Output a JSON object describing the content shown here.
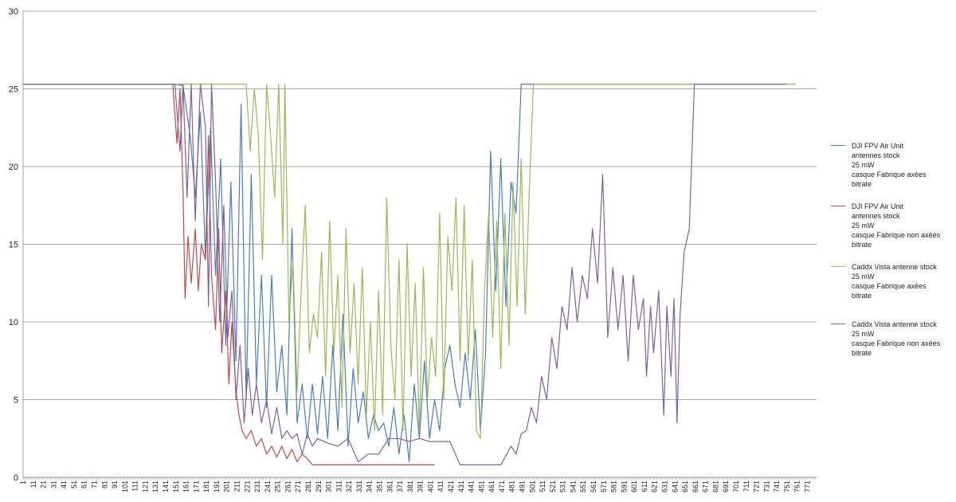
{
  "chart_data": {
    "type": "line",
    "ylim": [
      0,
      30
    ],
    "yticks": [
      0,
      5,
      10,
      15,
      20,
      25,
      30
    ],
    "xlim": [
      1,
      780
    ],
    "xtick_start": 1,
    "xtick_step": 10,
    "xtick_count": 78,
    "grid": "horizontal",
    "legend_position": "right",
    "series": [
      {
        "name": "DJI FPV Air Unit\nantennes stock\n25 mW\n casque Fabrique axées\nbitrate",
        "color": "#4a7ebb",
        "x": [
          1,
          150,
          158,
          165,
          170,
          175,
          180,
          185,
          190,
          195,
          200,
          205,
          210,
          215,
          220,
          225,
          230,
          235,
          240,
          245,
          250,
          255,
          260,
          265,
          270,
          275,
          280,
          285,
          290,
          295,
          300,
          305,
          310,
          315,
          320,
          325,
          330,
          335,
          340,
          345,
          350,
          355,
          360,
          365,
          370,
          375,
          380,
          385,
          390,
          395,
          400,
          405,
          410,
          415,
          420,
          425,
          430,
          435,
          440,
          445,
          450,
          455,
          460,
          465,
          470,
          475,
          480,
          485,
          490,
          495,
          500,
          520,
          540,
          560,
          580,
          600,
          620,
          640,
          660,
          680,
          700,
          720,
          740,
          750
        ],
        "values": [
          25.3,
          25.3,
          25.2,
          22.0,
          18.0,
          23.5,
          14.0,
          22.5,
          13.0,
          20.5,
          8.5,
          19.0,
          7.5,
          24.0,
          5.0,
          19.5,
          6.0,
          13.0,
          4.5,
          13.0,
          5.5,
          8.5,
          4.0,
          16.0,
          3.5,
          6.0,
          2.5,
          6.0,
          2.8,
          6.5,
          2.5,
          8.5,
          3.0,
          10.5,
          2.0,
          7.0,
          3.5,
          5.5,
          2.5,
          4.0,
          3.0,
          3.5,
          2.0,
          4.5,
          1.5,
          4.0,
          1.0,
          6.0,
          2.5,
          7.5,
          2.5,
          5.0,
          3.0,
          7.0,
          8.5,
          6.0,
          4.5,
          8.0,
          5.0,
          9.5,
          3.0,
          8.0,
          21.0,
          12.0,
          20.5,
          11.0,
          19.0,
          17.0,
          25.3,
          25.3,
          25.3,
          25.3,
          25.3,
          25.3,
          25.3,
          25.3,
          25.3,
          25.3,
          25.3,
          25.3,
          25.3,
          25.3,
          25.3,
          25.3
        ]
      },
      {
        "name": "DJI FPV Air Unit\nantennes stock\n25 mW\n casque Fabrique non axées\nbitrate",
        "color": "#be4b48",
        "x": [
          1,
          148,
          152,
          155,
          158,
          160,
          163,
          166,
          170,
          173,
          176,
          180,
          183,
          186,
          190,
          193,
          196,
          200,
          203,
          206,
          210,
          213,
          216,
          220,
          225,
          230,
          235,
          240,
          245,
          250,
          255,
          260,
          265,
          270,
          275,
          280,
          285,
          290,
          295,
          300,
          310,
          320,
          330,
          340,
          350,
          360,
          370,
          380,
          390,
          400,
          405
        ],
        "values": [
          25.3,
          25.3,
          21.5,
          25.0,
          18.5,
          11.5,
          15.5,
          12.5,
          16.0,
          12.0,
          15.0,
          14.0,
          22.0,
          13.0,
          9.5,
          16.0,
          8.0,
          12.0,
          6.0,
          10.0,
          5.5,
          4.0,
          3.0,
          2.5,
          3.0,
          2.0,
          2.5,
          1.5,
          2.0,
          1.3,
          2.0,
          1.2,
          1.8,
          1.0,
          1.5,
          1.2,
          0.8,
          0.8,
          0.8,
          0.8,
          0.8,
          0.8,
          0.8,
          0.8,
          0.8,
          0.8,
          0.8,
          0.8,
          0.8,
          0.8,
          0.8
        ]
      },
      {
        "name": "Caddx Vista antenne stock\n25 mW\n casque Fabrique axées\nbitrate",
        "color": "#98b954",
        "x": [
          1,
          210,
          214,
          217,
          220,
          224,
          228,
          232,
          236,
          240,
          244,
          248,
          252,
          256,
          258,
          262,
          266,
          270,
          274,
          278,
          282,
          286,
          290,
          294,
          298,
          302,
          306,
          310,
          314,
          318,
          322,
          326,
          330,
          334,
          338,
          342,
          346,
          350,
          354,
          358,
          362,
          366,
          370,
          374,
          378,
          382,
          386,
          390,
          394,
          398,
          402,
          406,
          410,
          414,
          418,
          422,
          426,
          430,
          434,
          438,
          442,
          446,
          450,
          454,
          458,
          462,
          466,
          470,
          474,
          478,
          482,
          486,
          490,
          494,
          498,
          502,
          506,
          512,
          530,
          560,
          600,
          640,
          680,
          720,
          760
        ],
        "values": [
          25.3,
          25.3,
          25.3,
          25.3,
          25.3,
          21.0,
          25.0,
          22.0,
          14.0,
          25.3,
          22.0,
          18.0,
          25.3,
          15.0,
          25.3,
          10.0,
          14.0,
          5.5,
          12.0,
          17.5,
          8.0,
          10.5,
          9.0,
          14.5,
          6.5,
          16.5,
          8.0,
          13.0,
          4.5,
          16.0,
          8.0,
          12.5,
          6.0,
          13.5,
          4.0,
          10.0,
          3.0,
          12.0,
          4.0,
          18.0,
          8.5,
          5.0,
          14.0,
          3.0,
          15.0,
          6.5,
          12.5,
          3.0,
          13.5,
          5.0,
          9.0,
          6.5,
          17.0,
          5.0,
          15.5,
          12.0,
          18.0,
          7.5,
          17.5,
          7.5,
          14.0,
          3.0,
          2.5,
          12.0,
          17.0,
          9.0,
          16.5,
          7.0,
          17.0,
          8.5,
          19.0,
          11.0,
          20.5,
          10.5,
          18.5,
          25.3,
          25.3,
          25.3,
          25.3,
          25.3,
          25.3,
          25.3,
          25.3,
          25.3,
          25.3
        ]
      },
      {
        "name": "Caddx Vista antenne stock\n25 mW\n casque Fabrique non axées\nbitrate",
        "color": "#7d60a0",
        "x": [
          1,
          150,
          155,
          158,
          162,
          166,
          170,
          175,
          180,
          183,
          186,
          190,
          194,
          198,
          202,
          206,
          210,
          214,
          218,
          222,
          226,
          230,
          235,
          240,
          245,
          250,
          255,
          260,
          265,
          270,
          275,
          280,
          285,
          290,
          300,
          310,
          320,
          330,
          340,
          350,
          360,
          370,
          380,
          390,
          400,
          410,
          420,
          430,
          440,
          450,
          460,
          470,
          480,
          485,
          490,
          495,
          500,
          505,
          510,
          515,
          520,
          525,
          530,
          535,
          540,
          545,
          550,
          555,
          560,
          565,
          570,
          575,
          580,
          585,
          590,
          595,
          600,
          605,
          610,
          613,
          617,
          620,
          625,
          630,
          633,
          637,
          640,
          643,
          646,
          650,
          655,
          660,
          680,
          700,
          720,
          740,
          750
        ],
        "values": [
          25.3,
          25.3,
          21.0,
          25.3,
          18.0,
          25.3,
          16.5,
          25.3,
          22.5,
          11.0,
          25.3,
          19.0,
          10.0,
          17.5,
          9.0,
          12.0,
          5.0,
          8.5,
          3.5,
          7.0,
          4.0,
          6.0,
          3.5,
          5.0,
          2.8,
          4.5,
          2.5,
          3.0,
          2.5,
          2.8,
          1.5,
          2.8,
          2.0,
          2.5,
          2.2,
          2.0,
          2.5,
          1.0,
          1.5,
          1.5,
          2.5,
          2.5,
          2.3,
          2.5,
          2.3,
          2.3,
          2.3,
          0.8,
          0.8,
          0.8,
          0.8,
          0.8,
          2.0,
          1.5,
          2.8,
          3.0,
          4.5,
          3.5,
          6.5,
          5.0,
          9.0,
          7.0,
          11.0,
          9.5,
          13.5,
          10.0,
          13.0,
          11.5,
          16.0,
          12.5,
          19.5,
          9.0,
          13.5,
          9.5,
          13.0,
          7.5,
          13.0,
          9.5,
          11.5,
          6.5,
          11.0,
          8.0,
          12.0,
          4.0,
          11.0,
          6.5,
          11.5,
          3.5,
          10.5,
          14.5,
          16.0,
          25.3,
          25.3,
          25.3,
          25.3,
          25.3,
          25.3
        ]
      }
    ]
  }
}
